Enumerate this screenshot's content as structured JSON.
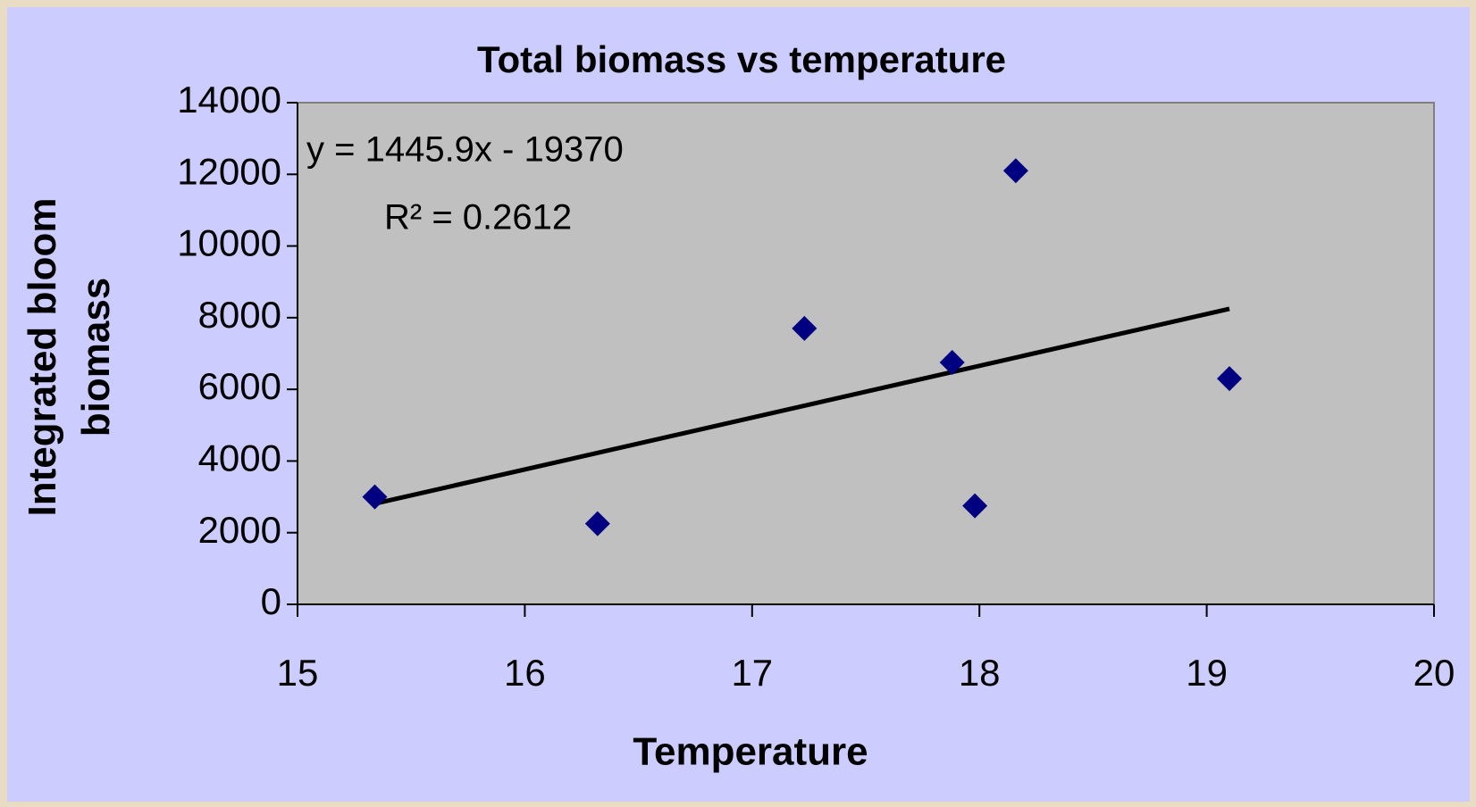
{
  "chart_data": {
    "type": "scatter",
    "title": "Total biomass vs temperature",
    "x_label": "Temperature",
    "y_label": "Integrated bloom biomass",
    "series": [
      {
        "name": "Total biomass",
        "color": "#000080",
        "x": [
          15.34,
          16.32,
          17.23,
          17.88,
          17.98,
          18.16,
          19.1
        ],
        "values": [
          3000,
          2250,
          7700,
          6750,
          2750,
          12100,
          6300
        ]
      }
    ],
    "trendline": {
      "slope": 1445.9,
      "intercept": -19370,
      "color": "#000000",
      "equation": "y = 1445.9x - 19370",
      "r_squared": "R² = 0.2612"
    },
    "xlim": [
      15,
      20
    ],
    "xticks": [
      15,
      16,
      17,
      18,
      19,
      20
    ],
    "ylim": [
      0,
      14000
    ],
    "yticks": [
      0,
      2000,
      4000,
      6000,
      8000,
      10000,
      12000,
      14000
    ],
    "grid": false
  }
}
